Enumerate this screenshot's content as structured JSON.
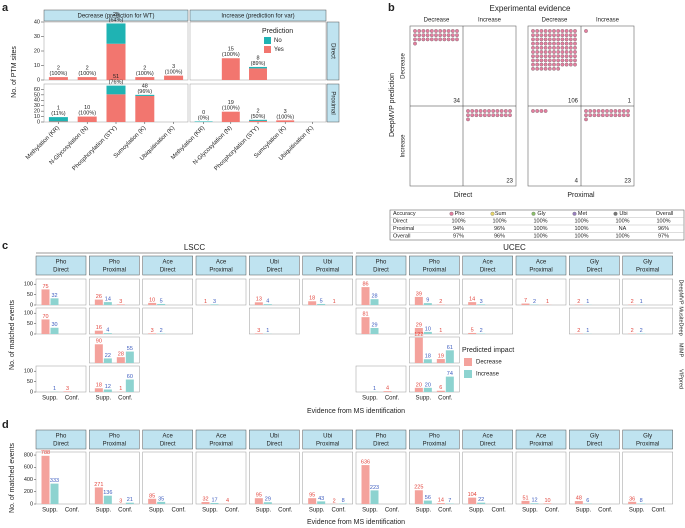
{
  "chart_data": [
    {
      "type": "facet_stacked_bar",
      "label": "a",
      "ylabel": "No. of PTM sites",
      "categories": [
        "Methylation (KR)",
        "N-Glycosylation (N)",
        "Phosphorylation (STY)",
        "Sumoylation (K)",
        "Ubiquitination (K)"
      ],
      "columns": [
        "Decrease (prediction for WT)",
        "Increase (prediction for var)"
      ],
      "rows": [
        {
          "name": "Direct",
          "ylim": [
            0,
            40
          ],
          "yticks": [
            0,
            10,
            20,
            30,
            40
          ]
        },
        {
          "name": "Proximal",
          "ylim": [
            0,
            70
          ],
          "yticks": [
            0,
            10,
            20,
            30,
            40,
            50,
            60
          ]
        }
      ],
      "legend_title": "Prediction",
      "series": [
        {
          "name": "No",
          "color": "#1fb3b3"
        },
        {
          "name": "Yes",
          "color": "#f2766f"
        }
      ],
      "facets": [
        [
          {
            "series_values": [
              [
                0,
                0,
                14,
                0,
                0
              ],
              [
                2,
                2,
                25,
                2,
                3
              ]
            ],
            "value_labels": [
              [
                "2",
                "(100%)"
              ],
              [
                "2",
                "(100%)"
              ],
              [
                "25",
                "(64%)"
              ],
              [
                "2",
                "(100%)"
              ],
              [
                "3",
                "(100%)"
              ]
            ]
          },
          {
            "series_values": [
              [
                null,
                0,
                1,
                null,
                null
              ],
              [
                null,
                15,
                8,
                null,
                null
              ]
            ],
            "value_labels": [
              null,
              [
                "15",
                "(100%)"
              ],
              [
                "8",
                "(89%)"
              ],
              null,
              null
            ]
          }
        ],
        [
          {
            "series_values": [
              [
                8,
                0,
                16,
                2,
                null
              ],
              [
                1,
                10,
                51,
                48,
                null
              ]
            ],
            "value_labels": [
              [
                "1",
                "(11%)"
              ],
              [
                "10",
                "(100%)"
              ],
              [
                "51",
                "(76%)"
              ],
              [
                "48",
                "(96%)"
              ],
              null
            ]
          },
          {
            "series_values": [
              [
                1,
                0,
                2,
                0,
                null
              ],
              [
                0,
                19,
                2,
                3,
                null
              ]
            ],
            "value_labels": [
              [
                "0",
                "(0%)"
              ],
              [
                "19",
                "(100%)"
              ],
              [
                "2",
                "(50%)"
              ],
              [
                "3",
                "(100%)"
              ],
              null
            ]
          }
        ]
      ]
    },
    {
      "type": "dot_matrix",
      "label": "b",
      "title": "Experimental evidence",
      "ylabel": "DeepMVP prediction",
      "col_labels": [
        "Decrease",
        "Increase"
      ],
      "row_labels": [
        "Decrease",
        "Increase"
      ],
      "dot_color": "#e47fa0",
      "matrices": [
        {
          "name": "Direct",
          "counts": [
            [
              34,
              null
            ],
            [
              null,
              23
            ]
          ]
        },
        {
          "name": "Proximal",
          "counts": [
            [
              106,
              1
            ],
            [
              4,
              23
            ]
          ]
        }
      ],
      "table": {
        "header": [
          "Accuracy",
          "Pho",
          "Sum",
          "Gly",
          "Met",
          "Ubi",
          "Overall"
        ],
        "marker_colors": [
          null,
          "#e47fa0",
          "#e8d66a",
          "#8cc06a",
          "#9a7fc0",
          "#777777",
          null
        ],
        "rows": [
          [
            "Direct",
            "100%",
            "100%",
            "100%",
            "100%",
            "100%",
            "100%"
          ],
          [
            "Proximal",
            "94%",
            "96%",
            "100%",
            "100%",
            "NA",
            "96%"
          ],
          [
            "Overall",
            "97%",
            "96%",
            "100%",
            "100%",
            "100%",
            "97%"
          ]
        ]
      }
    },
    {
      "type": "facet_grouped_bar",
      "label": "c",
      "ylabel": "No. of matched events",
      "xlabel": "Evidence from MS identification",
      "x_categories": [
        "Supp.",
        "Conf."
      ],
      "ylim": [
        0,
        125
      ],
      "yticks": [
        0,
        50,
        100
      ],
      "legend_title": "Predicted impact",
      "series": [
        {
          "name": "Decrease",
          "color": "#f4a29c",
          "label_color": "#e2453d"
        },
        {
          "name": "Increase",
          "color": "#8dd3d0",
          "label_color": "#3b5bbf"
        }
      ],
      "rows": [
        "DeepMVP",
        "MusiteDeep",
        "MIMP",
        "VIPpred"
      ],
      "groups": [
        {
          "name": "LSCC",
          "columns": [
            {
              "ptm": "Pho",
              "site": "Direct",
              "cells": [
                [
                  [
                    75,
                    32
                  ],
                  [
                    null,
                    null
                  ]
                ],
                [
                  [
                    70,
                    30
                  ],
                  [
                    null,
                    null
                  ]
                ],
                null,
                [
                  [
                    null,
                    1
                  ],
                  [
                    3,
                    null
                  ]
                ]
              ]
            },
            {
              "ptm": "Pho",
              "site": "Proximal",
              "cells": [
                [
                  [
                    26,
                    14
                  ],
                  [
                    3,
                    null
                  ]
                ],
                [
                  [
                    16,
                    4
                  ],
                  [
                    null,
                    null
                  ]
                ],
                [
                  [
                    90,
                    22
                  ],
                  [
                    28,
                    55
                  ]
                ],
                [
                  [
                    18,
                    12
                  ],
                  [
                    1,
                    60
                  ]
                ]
              ]
            },
            {
              "ptm": "Ace",
              "site": "Direct",
              "cells": [
                [
                  [
                    10,
                    5
                  ],
                  [
                    null,
                    null
                  ]
                ],
                [
                  [
                    3,
                    2
                  ],
                  [
                    null,
                    null
                  ]
                ],
                null,
                null
              ]
            },
            {
              "ptm": "Ace",
              "site": "Proximal",
              "cells": [
                [
                  [
                    1,
                    3
                  ],
                  [
                    null,
                    null
                  ]
                ],
                null,
                null,
                null
              ]
            },
            {
              "ptm": "Ubi",
              "site": "Direct",
              "cells": [
                [
                  [
                    13,
                    4
                  ],
                  [
                    null,
                    null
                  ]
                ],
                [
                  [
                    3,
                    1
                  ],
                  [
                    null,
                    null
                  ]
                ],
                null,
                null
              ]
            },
            {
              "ptm": "Ubi",
              "site": "Proximal",
              "cells": [
                [
                  [
                    18,
                    5
                  ],
                  [
                    1,
                    null
                  ]
                ],
                null,
                null,
                null
              ]
            }
          ]
        },
        {
          "name": "UCEC",
          "columns": [
            {
              "ptm": "Pho",
              "site": "Direct",
              "cells": [
                [
                  [
                    86,
                    28
                  ],
                  [
                    null,
                    null
                  ]
                ],
                [
                  [
                    81,
                    29
                  ],
                  [
                    null,
                    null
                  ]
                ],
                null,
                [
                  [
                    null,
                    1
                  ],
                  [
                    4,
                    null
                  ]
                ]
              ]
            },
            {
              "ptm": "Pho",
              "site": "Proximal",
              "cells": [
                [
                  [
                    39,
                    9
                  ],
                  [
                    2,
                    null
                  ]
                ],
                [
                  [
                    29,
                    10
                  ],
                  [
                    1,
                    null
                  ]
                ],
                [
                  [
                    122,
                    18
                  ],
                  [
                    19,
                    61
                  ]
                ],
                [
                  [
                    20,
                    20
                  ],
                  [
                    6,
                    74
                  ]
                ]
              ]
            },
            {
              "ptm": "Ace",
              "site": "Direct",
              "cells": [
                [
                  [
                    14,
                    3
                  ],
                  [
                    null,
                    null
                  ]
                ],
                [
                  [
                    5,
                    2
                  ],
                  [
                    null,
                    null
                  ]
                ],
                null,
                null
              ]
            },
            {
              "ptm": "Ace",
              "site": "Proximal",
              "cells": [
                [
                  [
                    7,
                    2
                  ],
                  [
                    1,
                    null
                  ]
                ],
                null,
                null,
                null
              ]
            },
            {
              "ptm": "Gly",
              "site": "Direct",
              "cells": [
                [
                  [
                    2,
                    1
                  ],
                  [
                    null,
                    null
                  ]
                ],
                [
                  [
                    2,
                    1
                  ],
                  [
                    null,
                    null
                  ]
                ],
                null,
                null
              ]
            },
            {
              "ptm": "Gly",
              "site": "Proximal",
              "cells": [
                [
                  [
                    2,
                    1
                  ],
                  [
                    null,
                    null
                  ]
                ],
                [
                  [
                    2,
                    2
                  ],
                  [
                    null,
                    null
                  ]
                ],
                null,
                null
              ]
            }
          ]
        }
      ]
    },
    {
      "type": "facet_grouped_bar_row",
      "label": "d",
      "ylabel": "No. of matched events",
      "xlabel": "Evidence from MS identification",
      "x_categories": [
        "Supp.",
        "Conf."
      ],
      "ylim": [
        0,
        850
      ],
      "yticks": [
        0,
        200,
        400,
        600,
        800
      ],
      "series": [
        {
          "name": "Decrease",
          "color": "#f4a29c",
          "label_color": "#e2453d"
        },
        {
          "name": "Increase",
          "color": "#8dd3d0",
          "label_color": "#3b5bbf"
        }
      ],
      "columns": [
        {
          "ptm": "Pho",
          "site": "Direct",
          "values": [
            [
              788,
              333
            ],
            [
              null,
              null
            ]
          ]
        },
        {
          "ptm": "Pho",
          "site": "Proximal",
          "values": [
            [
              271,
              136
            ],
            [
              3,
              21
            ]
          ]
        },
        {
          "ptm": "Ace",
          "site": "Direct",
          "values": [
            [
              85,
              35
            ],
            [
              null,
              null
            ]
          ]
        },
        {
          "ptm": "Ace",
          "site": "Proximal",
          "values": [
            [
              32,
              17
            ],
            [
              4,
              null
            ]
          ]
        },
        {
          "ptm": "Ubi",
          "site": "Direct",
          "values": [
            [
              95,
              29
            ],
            [
              null,
              null
            ]
          ]
        },
        {
          "ptm": "Ubi",
          "site": "Proximal",
          "values": [
            [
              95,
              43
            ],
            [
              2,
              8
            ]
          ]
        },
        {
          "ptm": "Pho",
          "site": "Direct",
          "values": [
            [
              636,
              223
            ],
            [
              null,
              null
            ]
          ]
        },
        {
          "ptm": "Pho",
          "site": "Proximal",
          "values": [
            [
              225,
              56
            ],
            [
              14,
              7
            ]
          ]
        },
        {
          "ptm": "Ace",
          "site": "Direct",
          "values": [
            [
              104,
              22
            ],
            [
              null,
              null
            ]
          ]
        },
        {
          "ptm": "Ace",
          "site": "Proximal",
          "values": [
            [
              51,
              12
            ],
            [
              10,
              null
            ]
          ]
        },
        {
          "ptm": "Gly",
          "site": "Direct",
          "values": [
            [
              48,
              6
            ],
            [
              null,
              null
            ]
          ]
        },
        {
          "ptm": "Gly",
          "site": "Proximal",
          "values": [
            [
              36,
              8
            ],
            [
              null,
              null
            ]
          ]
        }
      ]
    }
  ]
}
